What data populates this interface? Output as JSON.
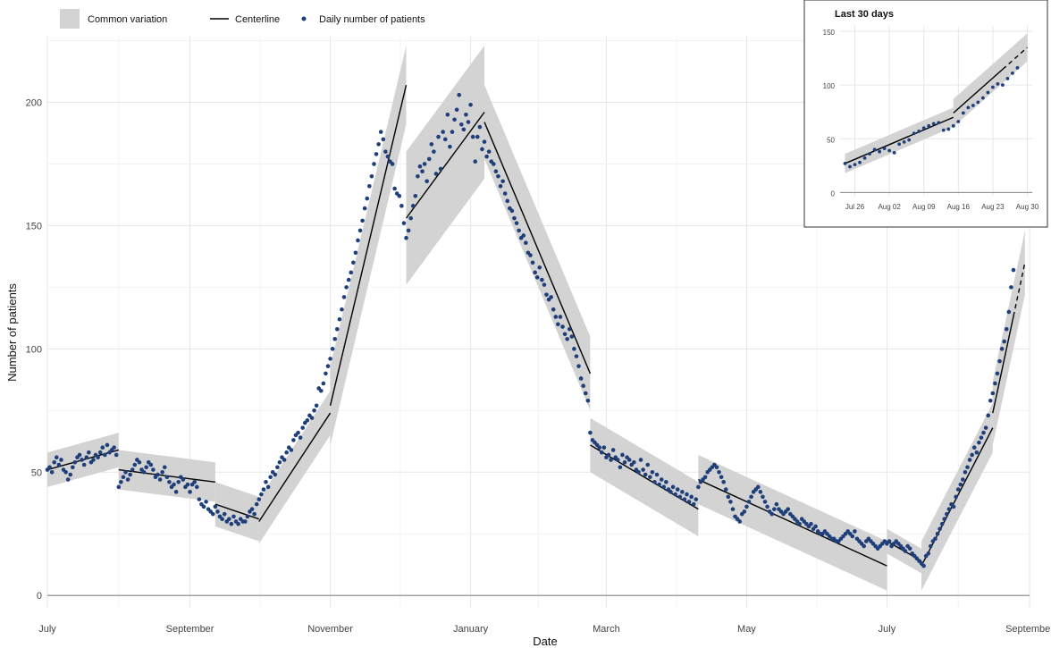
{
  "chart_data": [
    {
      "type": "scatter",
      "xlabel": "Date",
      "ylabel": "Number of patients",
      "xlim": [
        "2020-07-01",
        "2021-09-01"
      ],
      "ylim": [
        -5,
        227
      ],
      "yticks": [
        0,
        50,
        100,
        150,
        200
      ],
      "xticks": [
        {
          "date": "2020-07-01",
          "label": "July"
        },
        {
          "date": "2020-09-01",
          "label": "September"
        },
        {
          "date": "2020-11-01",
          "label": "November"
        },
        {
          "date": "2021-01-01",
          "label": "January"
        },
        {
          "date": "2021-03-01",
          "label": "March"
        },
        {
          "date": "2021-05-01",
          "label": "May"
        },
        {
          "date": "2021-07-01",
          "label": "July"
        },
        {
          "date": "2021-09-01",
          "label": "September"
        }
      ],
      "grid": true,
      "legend": {
        "placement": "top-left",
        "entries": [
          "Common variation",
          "Centerline",
          "Daily number of patients"
        ]
      },
      "colors": {
        "band": "#d3d3d3",
        "centerline": "#000000",
        "points": "#1f3f7a",
        "zero_line": "#888888"
      },
      "segments": [
        {
          "start": "2020-07-01",
          "end": "2020-08-01",
          "center": [
            51,
            59
          ],
          "halfwidth": 7
        },
        {
          "start": "2020-08-01",
          "end": "2020-09-12",
          "center": [
            51,
            46
          ],
          "halfwidth": 8
        },
        {
          "start": "2020-09-12",
          "end": "2020-10-01",
          "center": [
            37,
            31
          ],
          "halfwidth": 9
        },
        {
          "start": "2020-10-01",
          "end": "2020-11-01",
          "center": [
            30,
            74
          ],
          "halfwidth": 9
        },
        {
          "start": "2020-11-01",
          "end": "2020-12-04",
          "center": [
            77,
            207
          ],
          "halfwidth": 16
        },
        {
          "start": "2020-12-04",
          "end": "2021-01-07",
          "center": [
            153,
            196
          ],
          "halfwidth": 27
        },
        {
          "start": "2021-01-07",
          "end": "2021-02-22",
          "center": [
            192,
            90
          ],
          "halfwidth": 15
        },
        {
          "start": "2021-02-22",
          "end": "2021-04-10",
          "center": [
            61,
            35
          ],
          "halfwidth": 11
        },
        {
          "start": "2021-04-10",
          "end": "2021-07-01",
          "center": [
            47,
            12
          ],
          "halfwidth": 10
        },
        {
          "start": "2021-07-01",
          "end": "2021-07-16",
          "center": [
            22,
            14
          ],
          "halfwidth": 5
        },
        {
          "start": "2021-07-16",
          "end": "2021-08-16",
          "center": [
            12,
            68
          ],
          "halfwidth": 10
        },
        {
          "start": "2021-08-16",
          "end": "2021-08-30",
          "center": [
            74,
            135
          ],
          "halfwidth": 13,
          "projected_from": "2021-08-25"
        }
      ],
      "series": [
        {
          "name": "Daily number of patients",
          "x_start": "2020-07-01",
          "values": [
            51,
            52,
            50,
            54,
            56,
            53,
            55,
            51,
            50,
            47,
            49,
            52,
            54,
            56,
            57,
            55,
            53,
            56,
            58,
            54,
            55,
            57,
            56,
            58,
            60,
            57,
            61,
            58,
            59,
            60,
            57,
            44,
            46,
            48,
            50,
            47,
            49,
            51,
            53,
            55,
            54,
            51,
            50,
            52,
            54,
            53,
            51,
            48,
            49,
            47,
            50,
            52,
            48,
            46,
            44,
            45,
            42,
            46,
            48,
            47,
            44,
            45,
            42,
            45,
            46,
            44,
            39,
            37,
            36,
            38,
            35,
            34,
            33,
            36,
            34,
            32,
            31,
            33,
            30,
            31,
            29,
            32,
            30,
            29,
            31,
            30,
            30,
            32,
            34,
            35,
            33,
            37,
            39,
            41,
            43,
            46,
            44,
            48,
            50,
            49,
            52,
            54,
            56,
            55,
            58,
            60,
            59,
            63,
            65,
            66,
            64,
            68,
            70,
            71,
            73,
            72,
            75,
            77,
            84,
            83,
            86,
            90,
            93,
            96,
            100,
            104,
            108,
            112,
            116,
            121,
            125,
            128,
            131,
            135,
            139,
            144,
            148,
            152,
            157,
            161,
            166,
            170,
            175,
            179,
            183,
            188,
            185,
            180,
            178,
            176,
            175,
            165,
            163,
            162,
            158,
            151,
            145,
            148,
            153,
            158,
            162,
            170,
            174,
            172,
            175,
            168,
            177,
            183,
            180,
            171,
            186,
            173,
            188,
            185,
            195,
            182,
            188,
            193,
            197,
            203,
            191,
            189,
            195,
            192,
            199,
            186,
            176,
            186,
            190,
            181,
            184,
            178,
            180,
            176,
            175,
            172,
            170,
            166,
            168,
            163,
            160,
            157,
            156,
            153,
            151,
            148,
            145,
            146,
            143,
            139,
            138,
            135,
            131,
            129,
            133,
            128,
            126,
            122,
            120,
            121,
            116,
            113,
            110,
            113,
            109,
            106,
            104,
            108,
            105,
            100,
            97,
            93,
            88,
            85,
            82,
            79,
            66,
            63,
            62,
            61,
            60,
            58,
            60,
            56,
            57,
            55,
            59,
            56,
            55,
            52,
            57,
            54,
            56,
            55,
            53,
            54,
            51,
            50,
            55,
            51,
            49,
            53,
            48,
            50,
            46,
            49,
            45,
            47,
            44,
            46,
            43,
            42,
            44,
            41,
            43,
            40,
            42,
            39,
            41,
            38,
            40,
            37,
            39,
            44,
            46,
            47,
            48,
            50,
            51,
            52,
            53,
            52,
            50,
            48,
            46,
            43,
            40,
            38,
            35,
            32,
            31,
            30,
            33,
            34,
            36,
            38,
            40,
            42,
            43,
            44,
            42,
            40,
            38,
            36,
            34,
            33,
            35,
            37,
            35,
            34,
            33,
            34,
            35,
            33,
            32,
            31,
            30,
            29,
            31,
            30,
            29,
            28,
            29,
            27,
            28,
            26,
            25,
            25,
            26,
            25,
            24,
            23,
            23,
            22,
            22,
            23,
            24,
            25,
            26,
            25,
            24,
            26,
            23,
            22,
            21,
            20,
            22,
            23,
            22,
            21,
            20,
            19,
            20,
            21,
            22,
            21,
            22,
            20,
            21,
            22,
            21,
            20,
            19,
            18,
            20,
            19,
            17,
            16,
            15,
            14,
            13,
            12,
            16,
            17,
            20,
            22,
            23,
            25,
            27,
            29,
            31,
            33,
            35,
            37,
            36,
            40,
            43,
            45,
            47,
            50,
            52,
            55,
            57,
            60,
            58,
            62,
            64,
            66,
            68,
            73,
            79,
            82,
            86,
            90,
            95,
            100,
            103,
            108,
            115,
            125,
            132
          ]
        }
      ]
    },
    {
      "type": "scatter",
      "title": "Last 30 days",
      "xlim": [
        "2021-07-23",
        "2021-08-31"
      ],
      "ylim": [
        -3,
        155
      ],
      "yticks": [
        0,
        50,
        100,
        150
      ],
      "xticks": [
        {
          "date": "2021-07-26",
          "label": "Jul 26"
        },
        {
          "date": "2021-08-02",
          "label": "Aug 02"
        },
        {
          "date": "2021-08-09",
          "label": "Aug 09"
        },
        {
          "date": "2021-08-16",
          "label": "Aug 16"
        },
        {
          "date": "2021-08-23",
          "label": "Aug 23"
        },
        {
          "date": "2021-08-30",
          "label": "Aug 30"
        }
      ],
      "grid": true,
      "segments": [
        {
          "start": "2021-07-24",
          "end": "2021-08-15",
          "center": [
            27,
            70
          ],
          "halfwidth": 9
        },
        {
          "start": "2021-08-15",
          "end": "2021-08-30",
          "center": [
            74,
            135
          ],
          "halfwidth": 13,
          "projected_from": "2021-08-25"
        }
      ],
      "series": [
        {
          "name": "Daily number of patients",
          "x_start": "2021-07-24",
          "values": [
            27,
            24,
            26,
            28,
            32,
            36,
            40,
            38,
            41,
            39,
            37,
            45,
            47,
            49,
            55,
            57,
            60,
            62,
            64,
            65,
            58,
            59,
            62,
            66,
            74,
            79,
            81,
            84,
            88,
            93,
            98,
            101,
            100,
            106,
            111,
            116
          ]
        }
      ]
    }
  ]
}
